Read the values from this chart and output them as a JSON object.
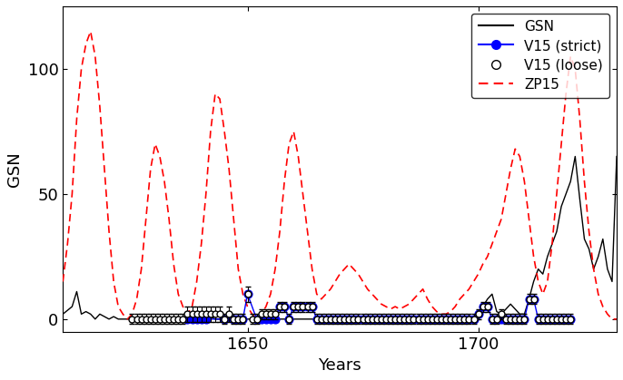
{
  "title": "",
  "xlabel": "Years",
  "ylabel": "GSN",
  "xlim": [
    1610,
    1730
  ],
  "ylim": [
    -5,
    125
  ],
  "yticks": [
    0,
    50,
    100
  ],
  "xticks": [
    1650,
    1700
  ],
  "gsn_x": [
    1610,
    1612,
    1613,
    1614,
    1615,
    1616,
    1617,
    1618,
    1619,
    1620,
    1621,
    1622,
    1623,
    1624,
    1625,
    1626,
    1627,
    1628,
    1629,
    1630,
    1631,
    1632,
    1633,
    1634,
    1635,
    1636,
    1637,
    1638,
    1639,
    1640,
    1641,
    1642,
    1643,
    1644,
    1645,
    1646,
    1647,
    1648,
    1649,
    1650,
    1651,
    1652,
    1653,
    1654,
    1655,
    1656,
    1657,
    1658,
    1659,
    1660,
    1661,
    1662,
    1663,
    1664,
    1665,
    1666,
    1667,
    1668,
    1669,
    1670,
    1671,
    1672,
    1673,
    1674,
    1675,
    1676,
    1677,
    1678,
    1679,
    1680,
    1681,
    1682,
    1683,
    1684,
    1685,
    1686,
    1687,
    1688,
    1689,
    1690,
    1691,
    1692,
    1693,
    1694,
    1695,
    1696,
    1697,
    1698,
    1699,
    1700,
    1701,
    1702,
    1703,
    1704,
    1705,
    1706,
    1707,
    1708,
    1709,
    1710,
    1711,
    1712,
    1713,
    1714,
    1715,
    1716,
    1717,
    1718,
    1719,
    1720,
    1721,
    1722,
    1723,
    1724,
    1725,
    1726,
    1727,
    1728,
    1729,
    1730
  ],
  "gsn_y": [
    2,
    5,
    11,
    2,
    3,
    2,
    0,
    2,
    1,
    0,
    1,
    0,
    0,
    0,
    0,
    0,
    0,
    0,
    0,
    0,
    0,
    0,
    0,
    0,
    1,
    0,
    0,
    0,
    2,
    1,
    0,
    1,
    0,
    0,
    0,
    0,
    0,
    0,
    0,
    0,
    0,
    0,
    0,
    0,
    0,
    0,
    0,
    0,
    0,
    0,
    0,
    0,
    0,
    0,
    0,
    0,
    0,
    0,
    0,
    0,
    0,
    0,
    0,
    0,
    0,
    0,
    0,
    0,
    0,
    0,
    0,
    0,
    0,
    0,
    0,
    0,
    0,
    0,
    0,
    0,
    0,
    0,
    0,
    0,
    0,
    1,
    0,
    0,
    0,
    2,
    5,
    8,
    10,
    3,
    2,
    4,
    6,
    4,
    2,
    2,
    8,
    15,
    20,
    18,
    25,
    30,
    35,
    45,
    50,
    55,
    65,
    48,
    32,
    28,
    20,
    25,
    32,
    20,
    15,
    65
  ],
  "zp15_x": [
    1610,
    1611,
    1612,
    1613,
    1614,
    1615,
    1616,
    1617,
    1618,
    1619,
    1620,
    1621,
    1622,
    1623,
    1624,
    1625,
    1626,
    1627,
    1628,
    1629,
    1630,
    1631,
    1632,
    1633,
    1634,
    1635,
    1636,
    1637,
    1638,
    1639,
    1640,
    1641,
    1642,
    1643,
    1644,
    1645,
    1646,
    1647,
    1648,
    1649,
    1650,
    1651,
    1652,
    1653,
    1654,
    1655,
    1656,
    1657,
    1658,
    1659,
    1660,
    1661,
    1662,
    1663,
    1664,
    1665,
    1666,
    1667,
    1668,
    1669,
    1670,
    1671,
    1672,
    1673,
    1674,
    1675,
    1676,
    1677,
    1678,
    1679,
    1680,
    1681,
    1682,
    1683,
    1684,
    1685,
    1686,
    1687,
    1688,
    1689,
    1690,
    1691,
    1692,
    1693,
    1694,
    1695,
    1696,
    1697,
    1698,
    1699,
    1700,
    1701,
    1702,
    1703,
    1704,
    1705,
    1706,
    1707,
    1708,
    1709,
    1710,
    1711,
    1712,
    1713,
    1714,
    1715,
    1716,
    1717,
    1718,
    1719,
    1720,
    1721,
    1722,
    1723,
    1724,
    1725,
    1726,
    1727,
    1728,
    1729,
    1730
  ],
  "zp15_y": [
    15,
    30,
    50,
    80,
    100,
    110,
    115,
    105,
    85,
    60,
    35,
    15,
    5,
    2,
    0,
    2,
    8,
    20,
    40,
    60,
    70,
    65,
    55,
    40,
    22,
    10,
    5,
    2,
    5,
    15,
    30,
    50,
    75,
    90,
    88,
    75,
    60,
    40,
    20,
    10,
    5,
    2,
    0,
    2,
    5,
    10,
    20,
    35,
    55,
    70,
    75,
    65,
    50,
    35,
    20,
    10,
    8,
    10,
    12,
    15,
    18,
    20,
    22,
    20,
    18,
    15,
    12,
    10,
    8,
    6,
    5,
    4,
    5,
    4,
    5,
    6,
    8,
    10,
    12,
    8,
    5,
    3,
    2,
    2,
    3,
    5,
    8,
    10,
    12,
    15,
    18,
    22,
    25,
    30,
    35,
    40,
    50,
    60,
    68,
    65,
    55,
    40,
    25,
    15,
    10,
    15,
    30,
    50,
    70,
    90,
    105,
    100,
    80,
    55,
    35,
    20,
    10,
    5,
    2,
    0,
    0
  ],
  "v15_strict_x": [
    1637,
    1638,
    1639,
    1640,
    1641,
    1645,
    1647,
    1648,
    1649,
    1650,
    1652,
    1653,
    1654,
    1655,
    1656,
    1657,
    1658,
    1659,
    1660,
    1661,
    1662,
    1663,
    1664,
    1665,
    1666,
    1667,
    1668,
    1669,
    1670,
    1671,
    1672,
    1673,
    1674,
    1675,
    1676,
    1677,
    1678,
    1679,
    1680,
    1681,
    1682,
    1683,
    1684,
    1685,
    1686,
    1687,
    1688,
    1689,
    1690,
    1691,
    1692,
    1693,
    1694,
    1695,
    1696,
    1697,
    1698,
    1699,
    1700,
    1701,
    1702,
    1703,
    1704,
    1705,
    1706,
    1707,
    1708,
    1709,
    1710,
    1711,
    1712,
    1713,
    1714,
    1715,
    1716,
    1717,
    1718,
    1719,
    1720
  ],
  "v15_strict_y": [
    0,
    0,
    0,
    0,
    0,
    0,
    0,
    0,
    0,
    10,
    0,
    0,
    0,
    0,
    0,
    5,
    5,
    0,
    5,
    5,
    5,
    5,
    5,
    0,
    0,
    0,
    0,
    0,
    0,
    0,
    0,
    0,
    0,
    0,
    0,
    0,
    0,
    0,
    0,
    0,
    0,
    0,
    0,
    0,
    0,
    0,
    0,
    0,
    0,
    0,
    0,
    0,
    0,
    0,
    0,
    0,
    0,
    0,
    2,
    5,
    5,
    0,
    0,
    0,
    0,
    0,
    0,
    0,
    0,
    8,
    8,
    0,
    0,
    0,
    0,
    0,
    0,
    0,
    0
  ],
  "v15_loose_x": [
    1625,
    1626,
    1627,
    1628,
    1629,
    1630,
    1631,
    1632,
    1633,
    1634,
    1635,
    1636,
    1637,
    1638,
    1639,
    1640,
    1641,
    1642,
    1643,
    1644,
    1645,
    1646,
    1647,
    1648,
    1649,
    1650,
    1651,
    1652,
    1653,
    1654,
    1655,
    1656,
    1657,
    1658,
    1659,
    1660,
    1661,
    1662,
    1663,
    1664,
    1665,
    1666,
    1667,
    1668,
    1669,
    1670,
    1671,
    1672,
    1673,
    1674,
    1675,
    1676,
    1677,
    1678,
    1679,
    1680,
    1681,
    1682,
    1683,
    1684,
    1685,
    1686,
    1687,
    1688,
    1689,
    1690,
    1691,
    1692,
    1693,
    1694,
    1695,
    1696,
    1697,
    1698,
    1699,
    1700,
    1701,
    1702,
    1703,
    1704,
    1705,
    1706,
    1707,
    1708,
    1709,
    1710,
    1711,
    1712,
    1713,
    1714,
    1715,
    1716,
    1717,
    1718,
    1719,
    1720
  ],
  "v15_loose_y": [
    0,
    0,
    0,
    0,
    0,
    0,
    0,
    0,
    0,
    0,
    0,
    0,
    2,
    2,
    2,
    2,
    2,
    2,
    2,
    2,
    0,
    2,
    0,
    0,
    0,
    10,
    0,
    0,
    2,
    2,
    2,
    2,
    5,
    5,
    0,
    5,
    5,
    5,
    5,
    5,
    0,
    0,
    0,
    0,
    0,
    0,
    0,
    0,
    0,
    0,
    0,
    0,
    0,
    0,
    0,
    0,
    0,
    0,
    0,
    0,
    0,
    0,
    0,
    0,
    0,
    0,
    0,
    0,
    0,
    0,
    0,
    0,
    0,
    0,
    0,
    2,
    5,
    5,
    0,
    0,
    2,
    0,
    0,
    0,
    0,
    0,
    8,
    8,
    0,
    0,
    0,
    0,
    0,
    0,
    0,
    0
  ],
  "v15_loose_yerr": [
    2,
    2,
    2,
    2,
    2,
    2,
    2,
    2,
    2,
    2,
    2,
    2,
    3,
    3,
    3,
    3,
    3,
    3,
    3,
    3,
    2,
    3,
    2,
    2,
    2,
    3,
    2,
    2,
    2,
    2,
    2,
    2,
    2,
    2,
    2,
    2,
    2,
    2,
    2,
    2,
    2,
    2,
    2,
    2,
    2,
    2,
    2,
    2,
    2,
    2,
    2,
    2,
    2,
    2,
    2,
    2,
    2,
    2,
    2,
    2,
    2,
    2,
    2,
    2,
    2,
    2,
    2,
    2,
    2,
    2,
    2,
    2,
    2,
    2,
    2,
    2,
    2,
    2,
    2,
    2,
    2,
    2,
    2,
    2,
    2,
    2,
    2,
    2,
    2,
    2,
    2,
    2,
    2,
    2,
    2,
    2
  ],
  "legend_labels": [
    "GSN",
    "V15 (strict)",
    "V15 (loose)",
    "ZP15"
  ],
  "legend_colors": [
    "black",
    "blue",
    "black",
    "red"
  ],
  "background_color": "#ffffff",
  "spine_color": "black",
  "tick_color": "black",
  "font_size": 13
}
